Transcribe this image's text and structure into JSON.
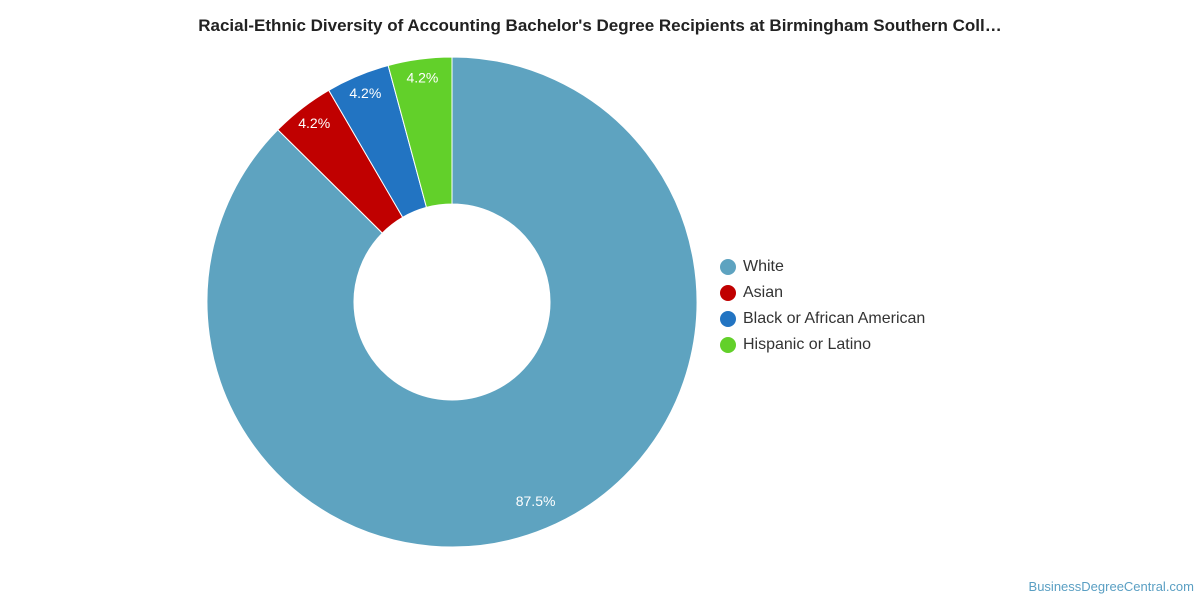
{
  "chart_data": {
    "type": "pie",
    "title": "Racial-Ethnic Diversity of Accounting Bachelor's Degree Recipients at Birmingham Southern Coll…",
    "categories": [
      "White",
      "Asian",
      "Black or African American",
      "Hispanic or Latino"
    ],
    "values": [
      87.5,
      4.2,
      4.2,
      4.2
    ],
    "labels": [
      "87.5%",
      "4.2%",
      "4.2%",
      "4.2%"
    ],
    "colors": [
      "#5ea3c0",
      "#c00000",
      "#2274c2",
      "#62d02a"
    ],
    "donut": true,
    "legend_position": "right"
  },
  "watermark": "BusinessDegreeCentral.com"
}
